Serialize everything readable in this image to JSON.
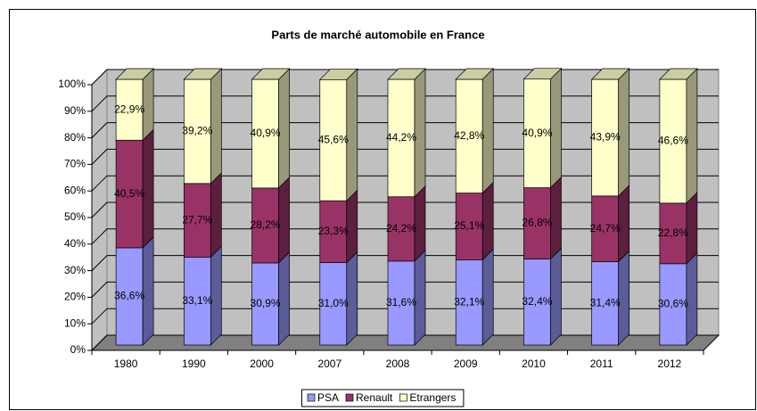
{
  "chart_data": {
    "type": "stacked_bar_3d",
    "title": "Parts de marché automobile en France",
    "categories": [
      "1980",
      "1990",
      "2000",
      "2007",
      "2008",
      "2009",
      "2010",
      "2011",
      "2012"
    ],
    "series": [
      {
        "name": "PSA",
        "color": "#9999ff",
        "values": [
          36.6,
          33.1,
          30.9,
          31.0,
          31.6,
          32.1,
          32.4,
          31.4,
          30.6
        ],
        "value_labels": [
          "36,6%",
          "33,1%",
          "30,9%",
          "31,0%",
          "31,6%",
          "32,1%",
          "32,4%",
          "31,4%",
          "30,6%"
        ]
      },
      {
        "name": "Renault",
        "color": "#993366",
        "values": [
          40.5,
          27.7,
          28.2,
          23.3,
          24.2,
          25.1,
          26.8,
          24.7,
          22.8
        ],
        "value_labels": [
          "40,5%",
          "27,7%",
          "28,2%",
          "23,3%",
          "24,2%",
          "25,1%",
          "26,8%",
          "24,7%",
          "22,8%"
        ]
      },
      {
        "name": "Etrangers",
        "color": "#ffffcc",
        "values": [
          22.9,
          39.2,
          40.9,
          45.6,
          44.2,
          42.8,
          40.9,
          43.9,
          46.6
        ],
        "value_labels": [
          "22,9%",
          "39,2%",
          "40,9%",
          "45,6%",
          "44,2%",
          "42,8%",
          "40,9%",
          "43,9%",
          "46,6%"
        ]
      }
    ],
    "ylim": [
      0,
      100
    ],
    "yticks": [
      {
        "value": 0,
        "label": "0%"
      },
      {
        "value": 10,
        "label": "10%"
      },
      {
        "value": 20,
        "label": "20%"
      },
      {
        "value": 30,
        "label": "30%"
      },
      {
        "value": 40,
        "label": "40%"
      },
      {
        "value": 50,
        "label": "50%"
      },
      {
        "value": 60,
        "label": "60%"
      },
      {
        "value": 70,
        "label": "70%"
      },
      {
        "value": 80,
        "label": "80%"
      },
      {
        "value": 90,
        "label": "90%"
      },
      {
        "value": 100,
        "label": "100%"
      }
    ],
    "grid": true,
    "legend": "bottom"
  }
}
